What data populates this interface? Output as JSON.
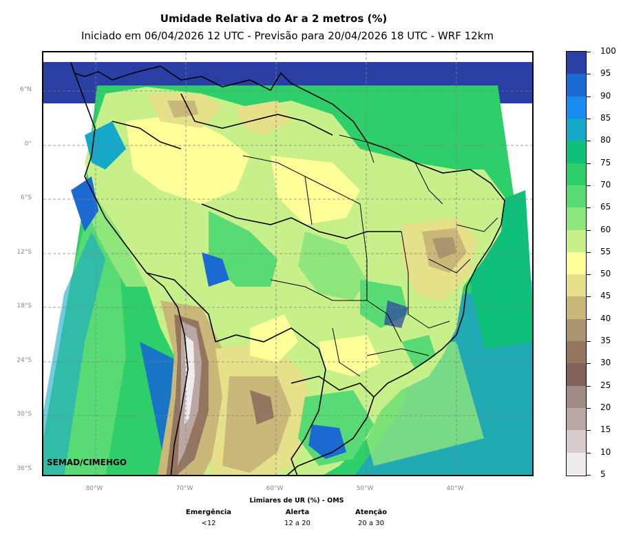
{
  "title": "Umidade Relativa do Ar a 2 metros (%)",
  "subtitle": "Iniciado em 06/04/2026 12 UTC - Previsão para 20/04/2026 18 UTC - WRF 12km",
  "credit": "SEMAD/CIMEHGO",
  "lat_labels": [
    "6°N",
    "0°",
    "6°S",
    "12°S",
    "18°S",
    "24°S",
    "30°S",
    "36°S"
  ],
  "lon_labels": [
    "80°W",
    "70°W",
    "60°W",
    "50°W",
    "40°W"
  ],
  "colorbar": {
    "labels": [
      "100",
      "95",
      "90",
      "85",
      "80",
      "75",
      "70",
      "65",
      "60",
      "55",
      "50",
      "45",
      "40",
      "35",
      "30",
      "25",
      "20",
      "15",
      "10",
      "5"
    ],
    "colors": [
      "#2a3fa3",
      "#1a6ad2",
      "#1a8cf0",
      "#16a8c8",
      "#10c07a",
      "#2ecf6a",
      "#58da74",
      "#8ee67c",
      "#c8f08a",
      "#ffff99",
      "#e6e08a",
      "#c9b87a",
      "#ab9470",
      "#947560",
      "#84605a",
      "#a08a86",
      "#baa8a5",
      "#d6cbca",
      "#f0eceb"
    ]
  },
  "thresholds": {
    "title": "Limiares de UR (%) - OMS",
    "items": [
      {
        "name": "Emergência",
        "range": "<12"
      },
      {
        "name": "Alerta",
        "range": "12 a 20"
      },
      {
        "name": "Atenção",
        "range": "20 a 30"
      }
    ]
  },
  "legend_icons": [
    "map-field",
    "country-borders",
    "state-borders",
    "gridlines"
  ]
}
